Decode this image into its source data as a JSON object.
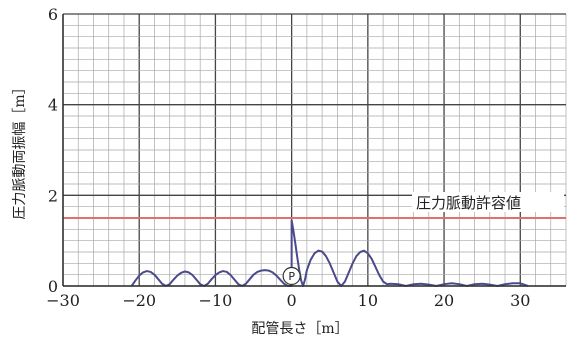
{
  "chart_data": {
    "type": "line",
    "title": "",
    "xlabel": "配管長さ［m］",
    "ylabel": "圧力脈動両振幅［m］",
    "xlim": [
      -30,
      36
    ],
    "ylim": [
      0,
      6
    ],
    "x_ticks": [
      -30,
      -20,
      -10,
      0,
      10,
      20,
      30
    ],
    "x_tick_labels": [
      "−30",
      "−20",
      "−10",
      "0",
      "10",
      "20",
      "30"
    ],
    "y_ticks": [
      0,
      2,
      4,
      6
    ],
    "y_tick_labels": [
      "0",
      "2",
      "4",
      "6"
    ],
    "grid": true,
    "reference_line": {
      "value": 1.5,
      "label": "圧力脈動許容値",
      "color": "#e07070"
    },
    "marker": {
      "label": "P",
      "x": 0,
      "y": 0
    },
    "series": [
      {
        "color": "#4a4a8c",
        "x": [
          -21,
          -20.5,
          -20,
          -19.5,
          -19,
          -18.5,
          -18,
          -17.5,
          -17,
          -16.5,
          -16,
          -15.5,
          -15,
          -14.5,
          -14,
          -13.5,
          -13,
          -12.5,
          -12,
          -11.5,
          -11,
          -10.5,
          -10,
          -9.5,
          -9,
          -8.5,
          -8,
          -7.5,
          -7,
          -6.5,
          -6,
          -5.5,
          -5,
          -4.5,
          -4,
          -3.5,
          -3,
          -2.5,
          -2,
          -1.5,
          -1,
          -0.5,
          0,
          0,
          0.25,
          0.5,
          0.75,
          1,
          1.25,
          1.5,
          1.75,
          2,
          2.5,
          3,
          3.5,
          4,
          4.5,
          5,
          5.5,
          6,
          6.5,
          7,
          7.5,
          8,
          8.5,
          9,
          9.5,
          10,
          10.5,
          11,
          11.5,
          12,
          12.5,
          13,
          14,
          15,
          16,
          17,
          18,
          19,
          20,
          21,
          22,
          23,
          24,
          25,
          26,
          27,
          28,
          29,
          30,
          31
        ],
        "y": [
          0.0,
          0.12,
          0.23,
          0.3,
          0.33,
          0.31,
          0.25,
          0.15,
          0.05,
          0.0,
          0.04,
          0.14,
          0.23,
          0.29,
          0.32,
          0.3,
          0.24,
          0.14,
          0.04,
          0.0,
          0.05,
          0.15,
          0.24,
          0.3,
          0.33,
          0.31,
          0.24,
          0.14,
          0.04,
          0.0,
          0.05,
          0.15,
          0.25,
          0.31,
          0.34,
          0.35,
          0.34,
          0.3,
          0.23,
          0.14,
          0.05,
          0.0,
          0.0,
          1.45,
          1.2,
          0.92,
          0.62,
          0.35,
          0.12,
          0.0,
          0.14,
          0.35,
          0.58,
          0.72,
          0.78,
          0.76,
          0.66,
          0.5,
          0.3,
          0.1,
          0.0,
          0.1,
          0.3,
          0.5,
          0.66,
          0.75,
          0.78,
          0.72,
          0.6,
          0.42,
          0.24,
          0.1,
          0.04,
          0.05,
          0.04,
          0.0,
          0.04,
          0.05,
          0.03,
          0.0,
          0.04,
          0.06,
          0.04,
          0.0,
          0.04,
          0.05,
          0.03,
          0.0,
          0.04,
          0.06,
          0.06,
          0.0
        ]
      }
    ]
  }
}
